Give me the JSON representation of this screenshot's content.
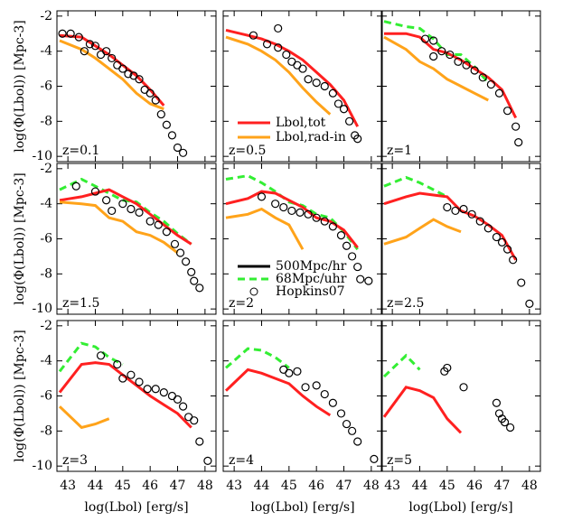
{
  "xlabel": "log(Lbol) [erg/s]",
  "ylabel": "log(Φ(Lbol)) [Mpc-3]",
  "chart_data": [
    {
      "type": "line",
      "title": "z=0.1",
      "x": [
        42.7,
        43.5,
        44,
        44.5,
        45,
        45.5,
        46,
        46.5,
        47,
        47.5
      ],
      "xlim": [
        42.6,
        48.4
      ],
      "ylim": [
        -10.3,
        -1.7
      ],
      "xticks": [
        43,
        44,
        45,
        46,
        47,
        48
      ],
      "yticks": [
        -2,
        -4,
        -6,
        -8,
        -10
      ],
      "series": [
        {
          "color": "#ff2020",
          "style": "solid",
          "values": [
            -3.1,
            -3.2,
            -3.7,
            -4.2,
            -4.8,
            -5.4,
            -6.2,
            -7.1,
            null,
            null
          ]
        },
        {
          "color": "#ffa31a",
          "style": "solid",
          "values": [
            -3.4,
            -3.9,
            -4.4,
            -5.0,
            -5.6,
            -6.4,
            -7.0,
            -7.3,
            null,
            null
          ]
        }
      ],
      "points": {
        "x": [
          42.8,
          43.1,
          43.4,
          43.6,
          43.8,
          44,
          44.2,
          44.4,
          44.6,
          44.8,
          45,
          45.2,
          45.4,
          45.6,
          45.8,
          46,
          46.2,
          46.4,
          46.6,
          46.8,
          47,
          47.2
        ],
        "values": [
          -3.0,
          -3.0,
          -3.2,
          -4.0,
          -3.6,
          -3.7,
          -4.2,
          -4.0,
          -4.4,
          -4.8,
          -5.0,
          -5.3,
          -5.4,
          -5.6,
          -6.2,
          -6.4,
          -6.8,
          -7.6,
          -8.2,
          -8.8,
          -9.5,
          -9.8
        ]
      },
      "legend": []
    },
    {
      "type": "line",
      "title": "z=0.5",
      "x": [
        42.7,
        43.5,
        44,
        44.5,
        45,
        45.5,
        46,
        46.5,
        47,
        47.5
      ],
      "xlim": [
        42.6,
        48.4
      ],
      "ylim": [
        -10.3,
        -1.7
      ],
      "xticks": [
        43,
        44,
        45,
        46,
        47,
        48
      ],
      "yticks": [
        -2,
        -4,
        -6,
        -8,
        -10
      ],
      "series": [
        {
          "color": "#ff2020",
          "style": "solid",
          "values": [
            -2.8,
            -3.1,
            -3.3,
            -3.6,
            -4.0,
            -4.5,
            -5.2,
            -5.9,
            -6.8,
            -8.3
          ]
        },
        {
          "color": "#ffa31a",
          "style": "solid",
          "values": [
            -3.2,
            -3.6,
            -4.0,
            -4.5,
            -5.2,
            -6.1,
            -6.9,
            -7.6,
            null,
            null
          ]
        }
      ],
      "points": {
        "x": [
          43.7,
          44.2,
          44.6,
          44.6,
          44.9,
          45.1,
          45.3,
          45.5,
          45.7,
          46,
          46.3,
          46.6,
          46.8,
          47,
          47.2,
          47.4,
          47.5
        ],
        "values": [
          -3.1,
          -3.6,
          -2.7,
          -3.8,
          -4.2,
          -4.6,
          -4.8,
          -5.0,
          -5.6,
          -5.8,
          -6.0,
          -6.4,
          -7.0,
          -7.3,
          -8.0,
          -8.8,
          -9.0
        ]
      },
      "legend": [
        {
          "name": "Lbol,tot",
          "color": "#ff2020",
          "style": "solid"
        },
        {
          "name": "Lbol,rad-in",
          "color": "#ffa31a",
          "style": "solid"
        }
      ]
    },
    {
      "type": "line",
      "title": "z=1",
      "x": [
        42.7,
        43.5,
        44,
        44.5,
        45,
        45.5,
        46,
        46.5,
        47,
        47.5
      ],
      "xlim": [
        42.6,
        48.4
      ],
      "ylim": [
        -10.3,
        -1.7
      ],
      "xticks": [
        43,
        44,
        45,
        46,
        47,
        48
      ],
      "yticks": [
        -2,
        -4,
        -6,
        -8,
        -10
      ],
      "series": [
        {
          "color": "#33ee33",
          "style": "dashed",
          "values": [
            -2.3,
            -2.6,
            -2.7,
            -3.3,
            -4.2,
            -4.2,
            -4.9,
            -5.8,
            null,
            null
          ]
        },
        {
          "color": "#ff2020",
          "style": "solid",
          "values": [
            -3.0,
            -3.0,
            -3.2,
            -3.9,
            -4.1,
            -4.5,
            -5.0,
            -5.5,
            -6.2,
            -7.8
          ]
        },
        {
          "color": "#ffa31a",
          "style": "solid",
          "values": [
            -3.2,
            -3.9,
            -4.6,
            -5.0,
            -5.6,
            -6.0,
            -6.4,
            -6.8,
            null,
            null
          ]
        }
      ],
      "points": {
        "x": [
          44.2,
          44.5,
          44.5,
          44.8,
          45.1,
          45.4,
          45.7,
          46,
          46.3,
          46.6,
          46.9,
          47.2,
          47.5,
          47.6
        ],
        "values": [
          -3.3,
          -3.4,
          -4.3,
          -4.0,
          -4.2,
          -4.6,
          -4.8,
          -5.1,
          -5.5,
          -5.9,
          -6.4,
          -7.4,
          -8.3,
          -9.2
        ]
      },
      "legend": []
    },
    {
      "type": "line",
      "title": "z=1.5",
      "x": [
        42.7,
        43.5,
        44,
        44.5,
        45,
        45.5,
        46,
        46.5,
        47,
        47.5
      ],
      "xlim": [
        42.6,
        48.4
      ],
      "ylim": [
        -10.3,
        -1.7
      ],
      "xticks": [
        43,
        44,
        45,
        46,
        47,
        48
      ],
      "yticks": [
        -2,
        -4,
        -6,
        -8,
        -10
      ],
      "series": [
        {
          "color": "#33ee33",
          "style": "dashed",
          "values": [
            -3.2,
            -2.6,
            -3.0,
            -3.4,
            -3.8,
            -3.9,
            -4.5,
            -5.0,
            -5.7,
            -6.3
          ]
        },
        {
          "color": "#ff2020",
          "style": "solid",
          "values": [
            -3.8,
            -3.6,
            -3.4,
            -3.2,
            -3.6,
            -4.0,
            -4.6,
            -5.2,
            -5.8,
            -6.3
          ]
        },
        {
          "color": "#ffa31a",
          "style": "solid",
          "values": [
            -3.9,
            -4.0,
            -4.1,
            -4.8,
            -5.0,
            -5.6,
            -5.8,
            -6.2,
            -6.8,
            null
          ]
        }
      ],
      "points": {
        "x": [
          43.3,
          44,
          44.4,
          44.6,
          45,
          45.3,
          45.6,
          46,
          46.3,
          46.6,
          46.9,
          47.1,
          47.3,
          47.5,
          47.6,
          47.8
        ],
        "values": [
          -3.0,
          -3.3,
          -3.8,
          -4.4,
          -4.0,
          -4.3,
          -4.5,
          -5.0,
          -5.2,
          -5.6,
          -6.3,
          -6.8,
          -7.3,
          -7.9,
          -8.4,
          -8.8
        ]
      },
      "legend": []
    },
    {
      "type": "line",
      "title": "z=2",
      "x": [
        42.7,
        43.5,
        44,
        44.5,
        45,
        45.5,
        46,
        46.5,
        47,
        47.5
      ],
      "xlim": [
        42.6,
        48.4
      ],
      "ylim": [
        -10.3,
        -1.7
      ],
      "xticks": [
        43,
        44,
        45,
        46,
        47,
        48
      ],
      "yticks": [
        -2,
        -4,
        -6,
        -8,
        -10
      ],
      "series": [
        {
          "color": "#33ee33",
          "style": "dashed",
          "values": [
            -2.6,
            -2.4,
            -2.8,
            -3.3,
            -3.9,
            -4.1,
            -4.6,
            -4.8,
            -5.6,
            -6.6
          ]
        },
        {
          "color": "#ff2020",
          "style": "solid",
          "values": [
            -4.0,
            -3.7,
            -3.3,
            -3.4,
            -3.8,
            -4.2,
            -4.8,
            -5.0,
            -5.5,
            -6.5
          ]
        },
        {
          "color": "#ffa31a",
          "style": "solid",
          "values": [
            -4.8,
            -4.6,
            -4.3,
            -4.8,
            -5.2,
            -6.6,
            null,
            null,
            null,
            null
          ]
        }
      ],
      "points": {
        "x": [
          44,
          44.5,
          44.8,
          45.1,
          45.4,
          45.7,
          46,
          46.3,
          46.6,
          46.9,
          47.1,
          47.3,
          47.5,
          47.6,
          47.9
        ],
        "values": [
          -3.6,
          -4.0,
          -4.2,
          -4.4,
          -4.5,
          -4.6,
          -4.8,
          -5.0,
          -5.3,
          -5.8,
          -6.4,
          -7.0,
          -7.6,
          -8.3,
          -8.4
        ]
      },
      "legend": [
        {
          "name": "500Mpc/hr",
          "color": "#000000",
          "style": "solid"
        },
        {
          "name": "68Mpc/uhr",
          "color": "#33ee33",
          "style": "dashed"
        },
        {
          "name": "Hopkins07",
          "color": "#000000",
          "style": "circle"
        }
      ]
    },
    {
      "type": "line",
      "title": "z=2.5",
      "x": [
        42.7,
        43.5,
        44,
        44.5,
        45,
        45.5,
        46,
        46.5,
        47,
        47.5
      ],
      "xlim": [
        42.6,
        48.4
      ],
      "ylim": [
        -10.3,
        -1.7
      ],
      "xticks": [
        43,
        44,
        45,
        46,
        47,
        48
      ],
      "yticks": [
        -2,
        -4,
        -6,
        -8,
        -10
      ],
      "series": [
        {
          "color": "#33ee33",
          "style": "dashed",
          "values": [
            -3.0,
            -2.5,
            -2.8,
            -3.2,
            -3.6,
            null,
            null,
            null,
            null,
            null
          ]
        },
        {
          "color": "#ff2020",
          "style": "solid",
          "values": [
            -4.0,
            -3.6,
            -3.4,
            -3.5,
            -3.6,
            -4.4,
            -4.7,
            -5.2,
            -5.8,
            -7.2
          ]
        },
        {
          "color": "#ffa31a",
          "style": "solid",
          "values": [
            -6.3,
            -5.9,
            -5.4,
            -4.9,
            -5.3,
            -5.6,
            null,
            null,
            null,
            null
          ]
        }
      ],
      "points": {
        "x": [
          45,
          45.3,
          45.6,
          45.9,
          46.2,
          46.5,
          46.8,
          47,
          47.2,
          47.4,
          47.7,
          48
        ],
        "values": [
          -4.2,
          -4.4,
          -4.3,
          -4.6,
          -5.0,
          -5.4,
          -5.9,
          -6.2,
          -6.6,
          -7.2,
          -8.5,
          -9.7
        ]
      },
      "legend": []
    },
    {
      "type": "line",
      "title": "z=3",
      "x": [
        42.7,
        43.5,
        44,
        44.5,
        45,
        45.5,
        46,
        46.5,
        47,
        47.5
      ],
      "xlim": [
        42.6,
        48.4
      ],
      "ylim": [
        -10.3,
        -1.7
      ],
      "xticks": [
        43,
        44,
        45,
        46,
        47,
        48
      ],
      "yticks": [
        -2,
        -4,
        -6,
        -8,
        -10
      ],
      "series": [
        {
          "color": "#33ee33",
          "style": "dashed",
          "values": [
            -4.6,
            -3.0,
            -3.2,
            -3.8,
            -4.2,
            null,
            null,
            null,
            null,
            null
          ]
        },
        {
          "color": "#ff2020",
          "style": "solid",
          "values": [
            -5.8,
            -4.2,
            -4.1,
            -4.2,
            -4.8,
            -5.4,
            -6.0,
            -6.5,
            -7.0,
            -7.8
          ]
        },
        {
          "color": "#ffa31a",
          "style": "solid",
          "values": [
            -6.6,
            -7.8,
            -7.6,
            -7.3,
            null,
            null,
            null,
            null,
            null,
            null
          ]
        }
      ],
      "points": {
        "x": [
          44.2,
          44.8,
          45,
          45.3,
          45.6,
          45.9,
          46.2,
          46.5,
          46.8,
          47,
          47.2,
          47.4,
          47.6,
          47.8,
          48.1
        ],
        "values": [
          -3.7,
          -4.2,
          -5.0,
          -4.8,
          -5.2,
          -5.6,
          -5.6,
          -5.8,
          -6.0,
          -6.2,
          -6.6,
          -7.2,
          -7.4,
          -8.6,
          -9.7
        ]
      },
      "legend": []
    },
    {
      "type": "line",
      "title": "z=4",
      "x": [
        42.7,
        43.5,
        44,
        44.5,
        45,
        45.5,
        46,
        46.5,
        47,
        47.5
      ],
      "xlim": [
        42.6,
        48.4
      ],
      "ylim": [
        -10.3,
        -1.7
      ],
      "xticks": [
        43,
        44,
        45,
        46,
        47,
        48
      ],
      "yticks": [
        -2,
        -4,
        -6,
        -8,
        -10
      ],
      "series": [
        {
          "color": "#33ee33",
          "style": "dashed",
          "values": [
            -4.4,
            -3.3,
            -3.4,
            -3.8,
            -4.4,
            null,
            null,
            null,
            null,
            null
          ]
        },
        {
          "color": "#ff2020",
          "style": "solid",
          "values": [
            -5.7,
            -4.5,
            -4.7,
            -5.0,
            -5.3,
            -6.0,
            -6.6,
            -7.1,
            null,
            null
          ]
        }
      ],
      "points": {
        "x": [
          44.8,
          45,
          45.3,
          45.6,
          46,
          46.3,
          46.6,
          46.9,
          47.1,
          47.3,
          47.5,
          48.1
        ],
        "values": [
          -4.5,
          -4.7,
          -4.6,
          -5.5,
          -5.4,
          -5.9,
          -6.4,
          -7.0,
          -7.6,
          -8.0,
          -8.6,
          -9.6
        ]
      },
      "legend": []
    },
    {
      "type": "line",
      "title": "z=5",
      "x": [
        42.7,
        43.5,
        44,
        44.5,
        45,
        45.5,
        46,
        46.5,
        47,
        47.5
      ],
      "xlim": [
        42.6,
        48.4
      ],
      "ylim": [
        -10.3,
        -1.7
      ],
      "xticks": [
        43,
        44,
        45,
        46,
        47,
        48
      ],
      "yticks": [
        -2,
        -4,
        -6,
        -8,
        -10
      ],
      "series": [
        {
          "color": "#33ee33",
          "style": "dashed",
          "values": [
            -4.9,
            -3.7,
            -4.5,
            null,
            null,
            null,
            null,
            null,
            null,
            null
          ]
        },
        {
          "color": "#ff2020",
          "style": "solid",
          "values": [
            -7.2,
            -5.5,
            -5.7,
            -6.1,
            -7.3,
            -8.1,
            null,
            null,
            null,
            null
          ]
        }
      ],
      "points": {
        "x": [
          44.9,
          45,
          45.6,
          46.8,
          46.9,
          47,
          47.1,
          47.3
        ],
        "values": [
          -4.6,
          -4.4,
          -5.5,
          -6.4,
          -7.0,
          -7.3,
          -7.5,
          -7.8
        ]
      },
      "legend": []
    }
  ]
}
